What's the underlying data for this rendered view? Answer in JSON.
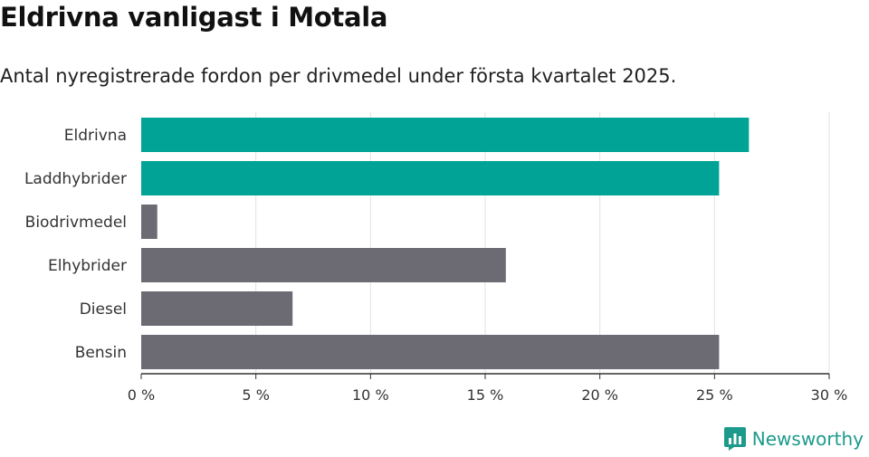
{
  "title": "Eldrivna vanligast i Motala",
  "subtitle": "Antal nyregistrerade fordon per drivmedel under första kvartalet 2025.",
  "brand": {
    "name": "Newsworthy",
    "logo_icon": "newsworthy-bar-chart-logo"
  },
  "colors": {
    "highlight": "#00a396",
    "default": "#6c6b73",
    "grid": "#e2e2e2",
    "axis": "#333333",
    "brand": "#1d9a8c"
  },
  "chart_data": {
    "type": "bar",
    "orientation": "horizontal",
    "categories": [
      "Eldrivna",
      "Laddhybrider",
      "Biodrivmedel",
      "Elhybrider",
      "Diesel",
      "Bensin"
    ],
    "values": [
      26.5,
      25.2,
      0.7,
      15.9,
      6.6,
      25.2
    ],
    "highlighted": [
      true,
      true,
      false,
      false,
      false,
      false
    ],
    "xlim": [
      0,
      30
    ],
    "ticks": [
      0,
      5,
      10,
      15,
      20,
      25,
      30
    ],
    "tick_labels": [
      "0 %",
      "5 %",
      "10 %",
      "15 %",
      "20 %",
      "25 %",
      "30 %"
    ],
    "xlabel": "",
    "ylabel": "",
    "grid": true
  }
}
